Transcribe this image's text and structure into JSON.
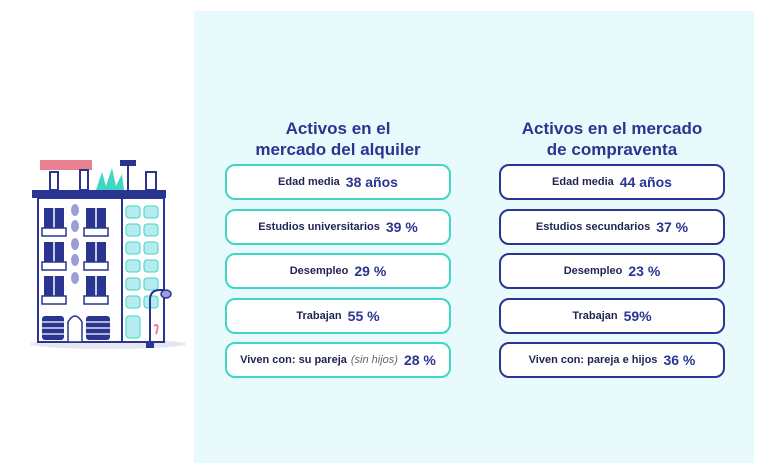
{
  "illustration": {
    "icon": "apartment-building-icon"
  },
  "rental": {
    "title_line1": "Activos en el",
    "title_line2": "mercado del alquiler",
    "items": [
      {
        "label": "Edad media",
        "value": "38 años"
      },
      {
        "label": "Estudios universitarios",
        "value": "39 %"
      },
      {
        "label": "Desempleo",
        "value": "29 %"
      },
      {
        "label": "Trabajan",
        "value": "55 %"
      },
      {
        "label": "Viven con: su pareja",
        "note": "(sin hijos)",
        "value": "28 %"
      }
    ]
  },
  "purchase": {
    "title_line1": "Activos en el mercado",
    "title_line2": "de compraventa",
    "items": [
      {
        "label": "Edad media",
        "value": "44 años"
      },
      {
        "label": "Estudios secundarios",
        "value": "37 %"
      },
      {
        "label": "Desempleo",
        "value": "23 %"
      },
      {
        "label": "Trabajan",
        "value": "59%"
      },
      {
        "label": "Viven con: pareja e hijos",
        "value": "36 %"
      }
    ]
  },
  "colors": {
    "navy": "#2a3591",
    "teal": "#3fd6c6",
    "panel": "#e8fafb",
    "pink": "#e8808f"
  }
}
